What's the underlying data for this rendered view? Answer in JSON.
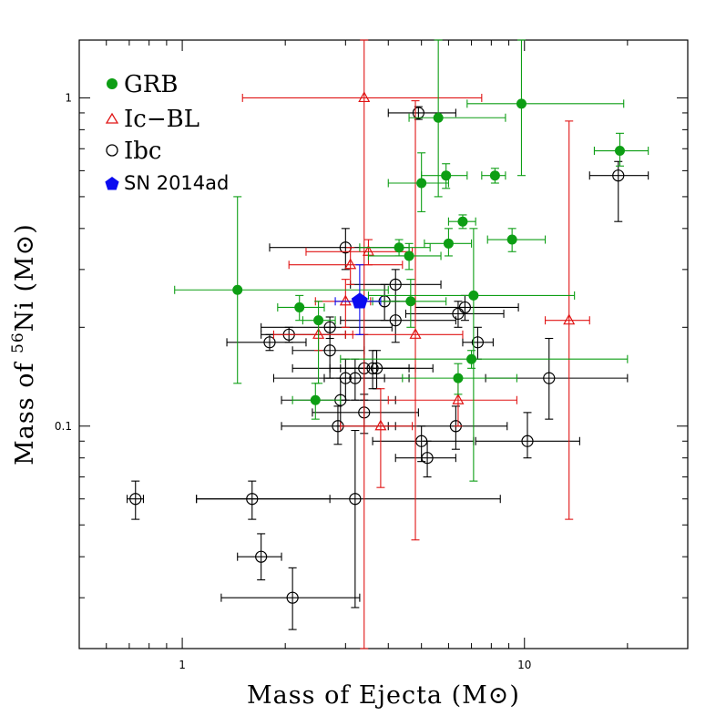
{
  "chart_data": {
    "type": "scatter",
    "title": "",
    "xlabel": "Mass of Ejecta (M⊙)",
    "ylabel_prefix": "Mass of ",
    "ylabel_sup": "56",
    "ylabel_suffix": "Ni (M⊙)",
    "xscale": "log",
    "yscale": "log",
    "xlim": [
      0.5,
      30
    ],
    "ylim": [
      0.021,
      1.5
    ],
    "xtick_labels": [
      {
        "value": 1,
        "label": "1"
      },
      {
        "value": 10,
        "label": "10"
      }
    ],
    "ytick_labels": [
      {
        "value": 0.1,
        "label": "0.1"
      },
      {
        "value": 1,
        "label": "1"
      }
    ],
    "legend_position": "top-left",
    "colors": {
      "GRB": "#0d9e14",
      "Ic-BL": "#e01414",
      "Ibc": "#000000",
      "SN 2014ad": "#0b0bf0"
    },
    "series": [
      {
        "name": "GRB",
        "legend_label": "GRB",
        "marker": "filled-circle",
        "points": [
          {
            "x": 1.45,
            "y": 0.26,
            "xlo": 0.95,
            "xhi": 4.0,
            "ylo": 0.135,
            "yhi": 0.5
          },
          {
            "x": 2.2,
            "y": 0.23,
            "xlo": 1.9,
            "xhi": 2.6,
            "ylo": 0.21,
            "yhi": 0.25
          },
          {
            "x": 2.5,
            "y": 0.21,
            "xlo": 2.25,
            "xhi": 2.8,
            "ylo": 0.135,
            "yhi": 0.24
          },
          {
            "x": 2.45,
            "y": 0.12,
            "xlo": 2.1,
            "xhi": 2.9,
            "ylo": 0.105,
            "yhi": 0.135
          },
          {
            "x": 4.3,
            "y": 0.35,
            "xlo": 3.3,
            "xhi": 5.3,
            "ylo": 0.33,
            "yhi": 0.37
          },
          {
            "x": 4.6,
            "y": 0.33,
            "xlo": 3.5,
            "xhi": 5.7,
            "ylo": 0.3,
            "yhi": 0.36
          },
          {
            "x": 4.65,
            "y": 0.24,
            "xlo": 3.6,
            "xhi": 5.9,
            "ylo": 0.2,
            "yhi": 0.28
          },
          {
            "x": 5.0,
            "y": 0.55,
            "xlo": 4.0,
            "xhi": 6.0,
            "ylo": 0.45,
            "yhi": 0.68
          },
          {
            "x": 5.6,
            "y": 0.87,
            "xlo": 4.6,
            "xhi": 8.8,
            "ylo": 0.5,
            "yhi": 1.5
          },
          {
            "x": 5.9,
            "y": 0.58,
            "xlo": 5.0,
            "xhi": 6.8,
            "ylo": 0.53,
            "yhi": 0.63
          },
          {
            "x": 6.0,
            "y": 0.36,
            "xlo": 5.1,
            "xhi": 7.0,
            "ylo": 0.33,
            "yhi": 0.4
          },
          {
            "x": 6.6,
            "y": 0.42,
            "xlo": 6.0,
            "xhi": 7.2,
            "ylo": 0.4,
            "yhi": 0.44
          },
          {
            "x": 8.2,
            "y": 0.58,
            "xlo": 7.5,
            "xhi": 8.8,
            "ylo": 0.55,
            "yhi": 0.61
          },
          {
            "x": 9.2,
            "y": 0.37,
            "xlo": 7.8,
            "xhi": 11.5,
            "ylo": 0.34,
            "yhi": 0.4
          },
          {
            "x": 9.8,
            "y": 0.96,
            "xlo": 6.8,
            "xhi": 19.5,
            "ylo": 0.58,
            "yhi": 1.5
          },
          {
            "x": 7.1,
            "y": 0.25,
            "xlo": 3.5,
            "xhi": 14.0,
            "ylo": 0.068,
            "yhi": 0.4
          },
          {
            "x": 7.0,
            "y": 0.16,
            "xlo": 2.9,
            "xhi": 20.0,
            "ylo": 0.15,
            "yhi": 0.17
          },
          {
            "x": 6.4,
            "y": 0.14,
            "xlo": 4.4,
            "xhi": 9.5,
            "ylo": 0.125,
            "yhi": 0.155
          },
          {
            "x": 19.0,
            "y": 0.69,
            "xlo": 16.0,
            "xhi": 23.0,
            "ylo": 0.62,
            "yhi": 0.78
          }
        ]
      },
      {
        "name": "Ic-BL",
        "legend_label": "Ic−BL",
        "marker": "open-triangle",
        "points": [
          {
            "x": 3.4,
            "y": 1.0,
            "xlo": 1.5,
            "xhi": 7.5,
            "ylo": 0.021,
            "yhi": 1.5
          },
          {
            "x": 3.5,
            "y": 0.34,
            "xlo": 2.3,
            "xhi": 4.7,
            "ylo": 0.31,
            "yhi": 0.37
          },
          {
            "x": 3.1,
            "y": 0.31,
            "xlo": 2.05,
            "xhi": 4.4,
            "ylo": 0.27,
            "yhi": 0.35
          },
          {
            "x": 2.5,
            "y": 0.19,
            "xlo": 1.85,
            "xhi": 3.15,
            "ylo": 0.17,
            "yhi": 0.21
          },
          {
            "x": 3.0,
            "y": 0.24,
            "xlo": 2.45,
            "xhi": 3.55,
            "ylo": 0.2,
            "yhi": 0.28
          },
          {
            "x": 4.8,
            "y": 0.19,
            "xlo": 3.0,
            "xhi": 6.6,
            "ylo": 0.045,
            "yhi": 0.98
          },
          {
            "x": 3.8,
            "y": 0.1,
            "xlo": 2.9,
            "xhi": 4.7,
            "ylo": 0.065,
            "yhi": 0.13
          },
          {
            "x": 6.4,
            "y": 0.12,
            "xlo": 4.0,
            "xhi": 9.5,
            "ylo": 0.1,
            "yhi": 0.14
          },
          {
            "x": 13.5,
            "y": 0.21,
            "xlo": 11.5,
            "xhi": 15.5,
            "ylo": 0.052,
            "yhi": 0.85
          }
        ]
      },
      {
        "name": "Ibc",
        "legend_label": "Ibc",
        "marker": "open-circle",
        "points": [
          {
            "x": 0.73,
            "y": 0.06,
            "xlo": 0.69,
            "xhi": 0.77,
            "ylo": 0.052,
            "yhi": 0.068
          },
          {
            "x": 1.6,
            "y": 0.06,
            "xlo": 1.1,
            "xhi": 2.7,
            "ylo": 0.052,
            "yhi": 0.068
          },
          {
            "x": 1.7,
            "y": 0.04,
            "xlo": 1.45,
            "xhi": 1.95,
            "ylo": 0.034,
            "yhi": 0.047
          },
          {
            "x": 2.1,
            "y": 0.03,
            "xlo": 1.3,
            "xhi": 3.3,
            "ylo": 0.024,
            "yhi": 0.037
          },
          {
            "x": 1.8,
            "y": 0.18,
            "xlo": 1.35,
            "xhi": 2.3,
            "ylo": 0.17,
            "yhi": 0.19
          },
          {
            "x": 2.05,
            "y": 0.19,
            "xlo": 1.7,
            "xhi": 3.0,
            "ylo": 0.18,
            "yhi": 0.2
          },
          {
            "x": 2.7,
            "y": 0.2,
            "xlo": 1.7,
            "xhi": 4.1,
            "ylo": 0.185,
            "yhi": 0.215
          },
          {
            "x": 2.7,
            "y": 0.17,
            "xlo": 2.1,
            "xhi": 3.4,
            "ylo": 0.14,
            "yhi": 0.2
          },
          {
            "x": 3.0,
            "y": 0.35,
            "xlo": 1.8,
            "xhi": 4.6,
            "ylo": 0.3,
            "yhi": 0.4
          },
          {
            "x": 2.9,
            "y": 0.12,
            "xlo": 1.95,
            "xhi": 4.2,
            "ylo": 0.1,
            "yhi": 0.14
          },
          {
            "x": 3.0,
            "y": 0.14,
            "xlo": 1.85,
            "xhi": 4.6,
            "ylo": 0.12,
            "yhi": 0.16
          },
          {
            "x": 3.2,
            "y": 0.14,
            "xlo": 2.6,
            "xhi": 3.9,
            "ylo": 0.12,
            "yhi": 0.16
          },
          {
            "x": 3.4,
            "y": 0.15,
            "xlo": 2.1,
            "xhi": 5.4,
            "ylo": 0.12,
            "yhi": 0.19
          },
          {
            "x": 3.6,
            "y": 0.15,
            "xlo": 2.7,
            "xhi": 4.8,
            "ylo": 0.13,
            "yhi": 0.17
          },
          {
            "x": 3.7,
            "y": 0.15,
            "xlo": 2.9,
            "xhi": 4.6,
            "ylo": 0.13,
            "yhi": 0.17
          },
          {
            "x": 2.85,
            "y": 0.1,
            "xlo": 1.95,
            "xhi": 4.2,
            "ylo": 0.088,
            "yhi": 0.115
          },
          {
            "x": 3.4,
            "y": 0.11,
            "xlo": 2.4,
            "xhi": 4.9,
            "ylo": 0.095,
            "yhi": 0.125
          },
          {
            "x": 3.2,
            "y": 0.06,
            "xlo": 1.1,
            "xhi": 8.5,
            "ylo": 0.028,
            "yhi": 0.097
          },
          {
            "x": 3.9,
            "y": 0.24,
            "xlo": 3.2,
            "xhi": 4.8,
            "ylo": 0.21,
            "yhi": 0.27
          },
          {
            "x": 4.2,
            "y": 0.27,
            "xlo": 3.1,
            "xhi": 5.7,
            "ylo": 0.24,
            "yhi": 0.3
          },
          {
            "x": 4.2,
            "y": 0.21,
            "xlo": 2.9,
            "xhi": 6.3,
            "ylo": 0.18,
            "yhi": 0.24
          },
          {
            "x": 6.4,
            "y": 0.22,
            "xlo": 4.5,
            "xhi": 8.7,
            "ylo": 0.2,
            "yhi": 0.24
          },
          {
            "x": 6.7,
            "y": 0.23,
            "xlo": 4.8,
            "xhi": 9.6,
            "ylo": 0.21,
            "yhi": 0.25
          },
          {
            "x": 7.3,
            "y": 0.18,
            "xlo": 6.6,
            "xhi": 8.1,
            "ylo": 0.16,
            "yhi": 0.2
          },
          {
            "x": 4.9,
            "y": 0.9,
            "xlo": 4.0,
            "xhi": 6.3,
            "ylo": 0.86,
            "yhi": 0.94
          },
          {
            "x": 5.0,
            "y": 0.09,
            "xlo": 3.6,
            "xhi": 7.1,
            "ylo": 0.078,
            "yhi": 0.1
          },
          {
            "x": 5.2,
            "y": 0.08,
            "xlo": 4.2,
            "xhi": 6.3,
            "ylo": 0.07,
            "yhi": 0.09
          },
          {
            "x": 6.3,
            "y": 0.1,
            "xlo": 4.0,
            "xhi": 8.9,
            "ylo": 0.085,
            "yhi": 0.115
          },
          {
            "x": 10.2,
            "y": 0.09,
            "xlo": 7.2,
            "xhi": 14.5,
            "ylo": 0.08,
            "yhi": 0.11
          },
          {
            "x": 11.8,
            "y": 0.14,
            "xlo": 7.7,
            "xhi": 20.0,
            "ylo": 0.105,
            "yhi": 0.185
          },
          {
            "x": 18.8,
            "y": 0.58,
            "xlo": 15.5,
            "xhi": 23.0,
            "ylo": 0.42,
            "yhi": 0.64
          }
        ]
      },
      {
        "name": "SN 2014ad",
        "legend_label": "SN 2014ad",
        "marker": "filled-pentagon",
        "points": [
          {
            "x": 3.3,
            "y": 0.24,
            "xlo": 2.8,
            "xhi": 3.8,
            "ylo": 0.19,
            "yhi": 0.31
          }
        ]
      }
    ]
  }
}
